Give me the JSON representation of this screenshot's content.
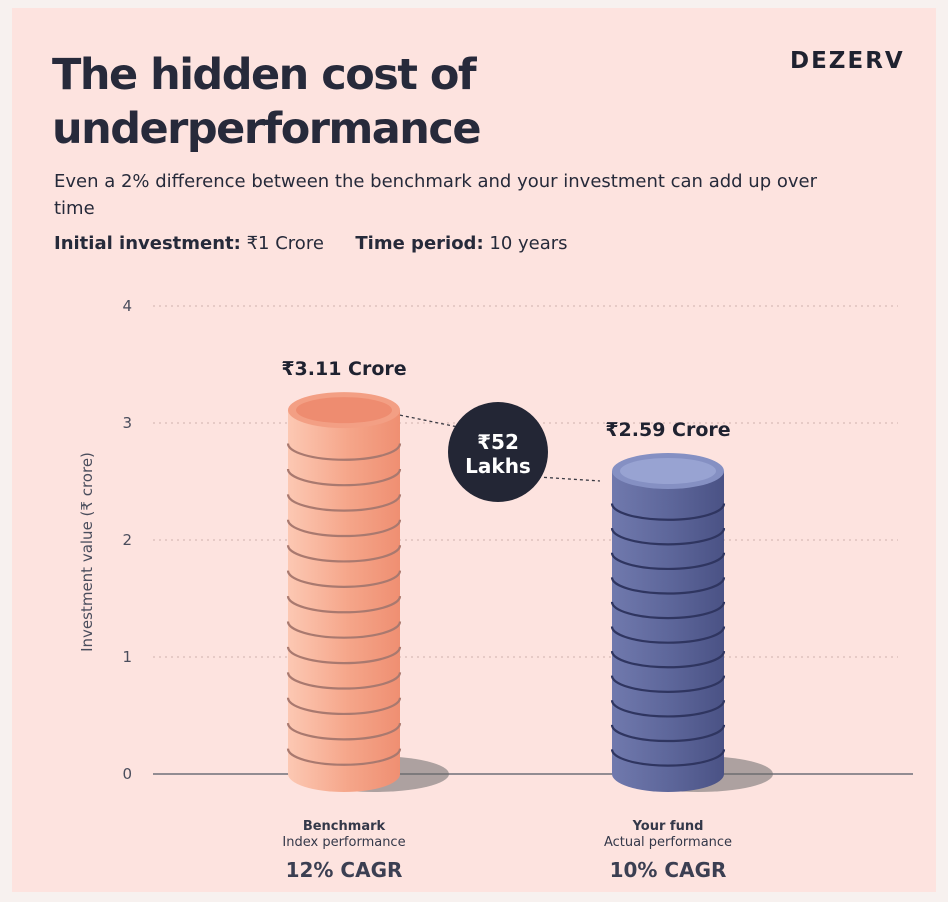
{
  "brand": "DEZERV",
  "title": "The hidden cost of underperformance",
  "subtitle": "Even a 2% difference between the benchmark and your investment can add up over time",
  "params": {
    "investment_label": "Initial investment:",
    "investment_value": "₹1 Crore",
    "period_label": "Time period:",
    "period_value": "10 years"
  },
  "chart_data": {
    "type": "bar",
    "ylabel": "Investment value (₹ crore)",
    "ylim": [
      0,
      4
    ],
    "yticks": [
      "0",
      "1",
      "2",
      "3",
      "4"
    ],
    "categories": [
      "Benchmark",
      "Your fund"
    ],
    "category_sublabels": [
      "Index performance",
      "Actual performance"
    ],
    "category_footers": [
      "12% CAGR",
      "10% CAGR"
    ],
    "values": [
      3.11,
      2.59
    ],
    "value_labels": [
      "₹3.11 Crore",
      "₹2.59 Crore"
    ],
    "colors": [
      "#f5a589",
      "#5c6599"
    ],
    "difference": {
      "line1": "₹52",
      "line2": "Lakhs"
    },
    "grid": true
  }
}
